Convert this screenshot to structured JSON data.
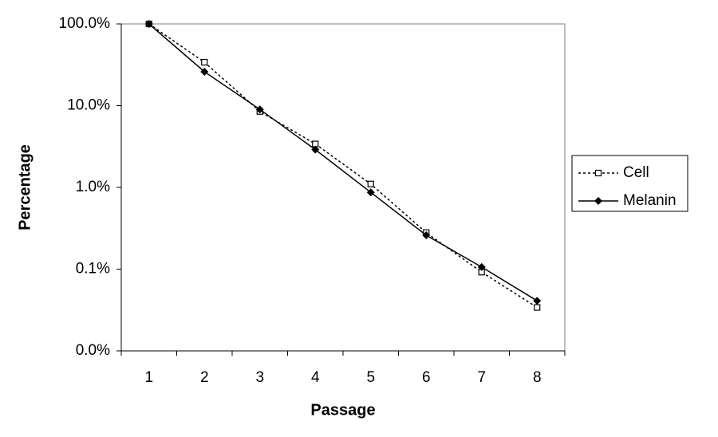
{
  "chart_data": {
    "type": "line",
    "x_label": "Passage",
    "y_label": "Percentage",
    "categories": [
      "1",
      "2",
      "3",
      "4",
      "5",
      "6",
      "7",
      "8"
    ],
    "log_scale_y": true,
    "ylim": [
      0.01,
      100
    ],
    "yticks": [
      {
        "value": 100,
        "label": "100.0%"
      },
      {
        "value": 10,
        "label": "10.0%"
      },
      {
        "value": 1,
        "label": "1.0%"
      },
      {
        "value": 0.1,
        "label": "0.1%"
      },
      {
        "value": 0.01,
        "label": "0.0%"
      }
    ],
    "grid": false,
    "legend_position": "right",
    "series": [
      {
        "name": "Cell",
        "color": "#000000",
        "line_style": "dotted",
        "marker": "square-open",
        "values": [
          100,
          34,
          8.5,
          3.4,
          1.1,
          0.28,
          0.092,
          0.034
        ]
      },
      {
        "name": "Melanin",
        "color": "#000000",
        "line_style": "solid",
        "marker": "diamond",
        "values": [
          100,
          26,
          9.0,
          2.9,
          0.87,
          0.26,
          0.106,
          0.041
        ]
      }
    ]
  }
}
